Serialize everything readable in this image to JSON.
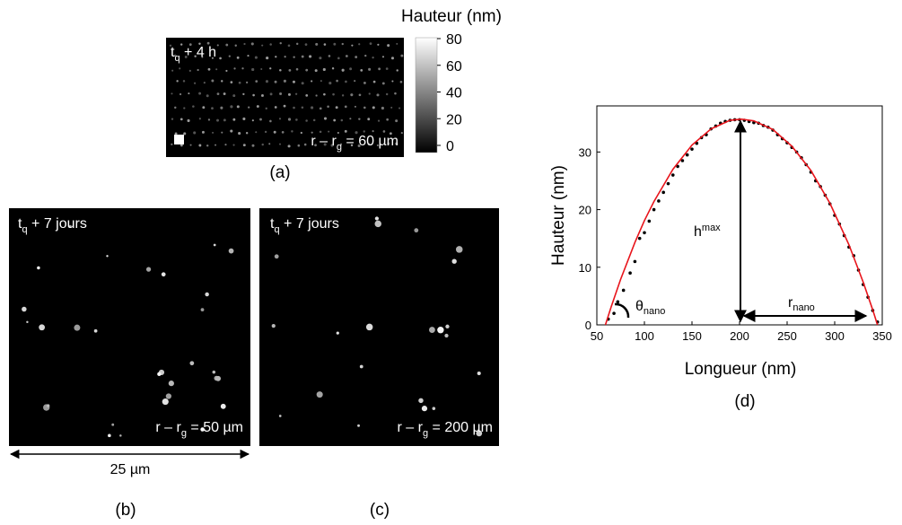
{
  "panels": [
    {
      "label": "(a)",
      "top": [
        "t",
        "q",
        " + 4 h"
      ],
      "bottom": [
        "r – r",
        "g",
        " = 60 µm"
      ]
    },
    {
      "label": "(b)",
      "top": [
        "t",
        "q",
        " + 7 jours"
      ],
      "bottom": [
        "r – r",
        "g",
        " =  50 µm"
      ]
    },
    {
      "label": "(c)",
      "top": [
        "t",
        "q",
        " + 7 jours"
      ],
      "bottom": [
        "r – r",
        "g",
        " = 200 µm"
      ]
    }
  ],
  "colorbar": {
    "title": "Hauteur (nm)",
    "lim": [
      0,
      80
    ],
    "ticks": [
      0,
      20,
      40,
      60,
      80
    ]
  },
  "scale_bar": "25 µm",
  "chart_data": {
    "type": "scatter",
    "panel_label": "(d)",
    "x_label": "Longueur (nm)",
    "y_label": "Hauteur (nm)",
    "xlim": [
      50,
      350
    ],
    "ylim": [
      0,
      38
    ],
    "xticks": [
      50,
      100,
      150,
      200,
      250,
      300,
      350
    ],
    "yticks": [
      0,
      10,
      20,
      30
    ],
    "annotations": {
      "h": [
        "h",
        "max"
      ],
      "r": [
        "r",
        "nano"
      ],
      "theta": [
        "θ",
        "nano"
      ]
    },
    "series": [
      {
        "style": "markers",
        "color": "#000000",
        "x": [
          62,
          68,
          72,
          78,
          85,
          90,
          95,
          100,
          105,
          110,
          115,
          120,
          125,
          130,
          135,
          140,
          145,
          150,
          155,
          160,
          165,
          170,
          175,
          180,
          185,
          190,
          195,
          200,
          205,
          210,
          215,
          220,
          225,
          230,
          235,
          240,
          245,
          250,
          255,
          260,
          265,
          270,
          275,
          280,
          285,
          290,
          295,
          300,
          305,
          310,
          315,
          320,
          325,
          330,
          335,
          340,
          345
        ],
        "values": [
          1,
          2,
          4,
          6,
          9,
          11,
          15,
          16,
          18,
          20,
          21.5,
          23,
          24.5,
          26,
          27.5,
          28.5,
          29.5,
          30.5,
          31.5,
          32.5,
          33,
          34,
          34.5,
          35,
          35.3,
          35.5,
          35.6,
          35.6,
          35.5,
          35.3,
          35.1,
          35,
          34.6,
          34.3,
          33.8,
          33,
          32.3,
          31.6,
          30.8,
          30,
          29,
          27.8,
          26.5,
          25,
          24,
          22.5,
          21,
          19,
          17.5,
          15.5,
          13.5,
          12,
          9.5,
          7,
          4.8,
          2.5,
          0.5
        ]
      },
      {
        "style": "line",
        "color": "#e8141b",
        "x": [
          59,
          65,
          75,
          90,
          100,
          110,
          130,
          150,
          170,
          190,
          202,
          215,
          235,
          255,
          275,
          295,
          315,
          330,
          340,
          345
        ],
        "values": [
          0,
          3.1,
          7.9,
          14.3,
          18.1,
          21.4,
          27.0,
          31.2,
          34.0,
          35.5,
          35.7,
          35.4,
          33.9,
          31.0,
          26.8,
          21.1,
          13.9,
          7.4,
          2.6,
          0
        ]
      }
    ]
  }
}
